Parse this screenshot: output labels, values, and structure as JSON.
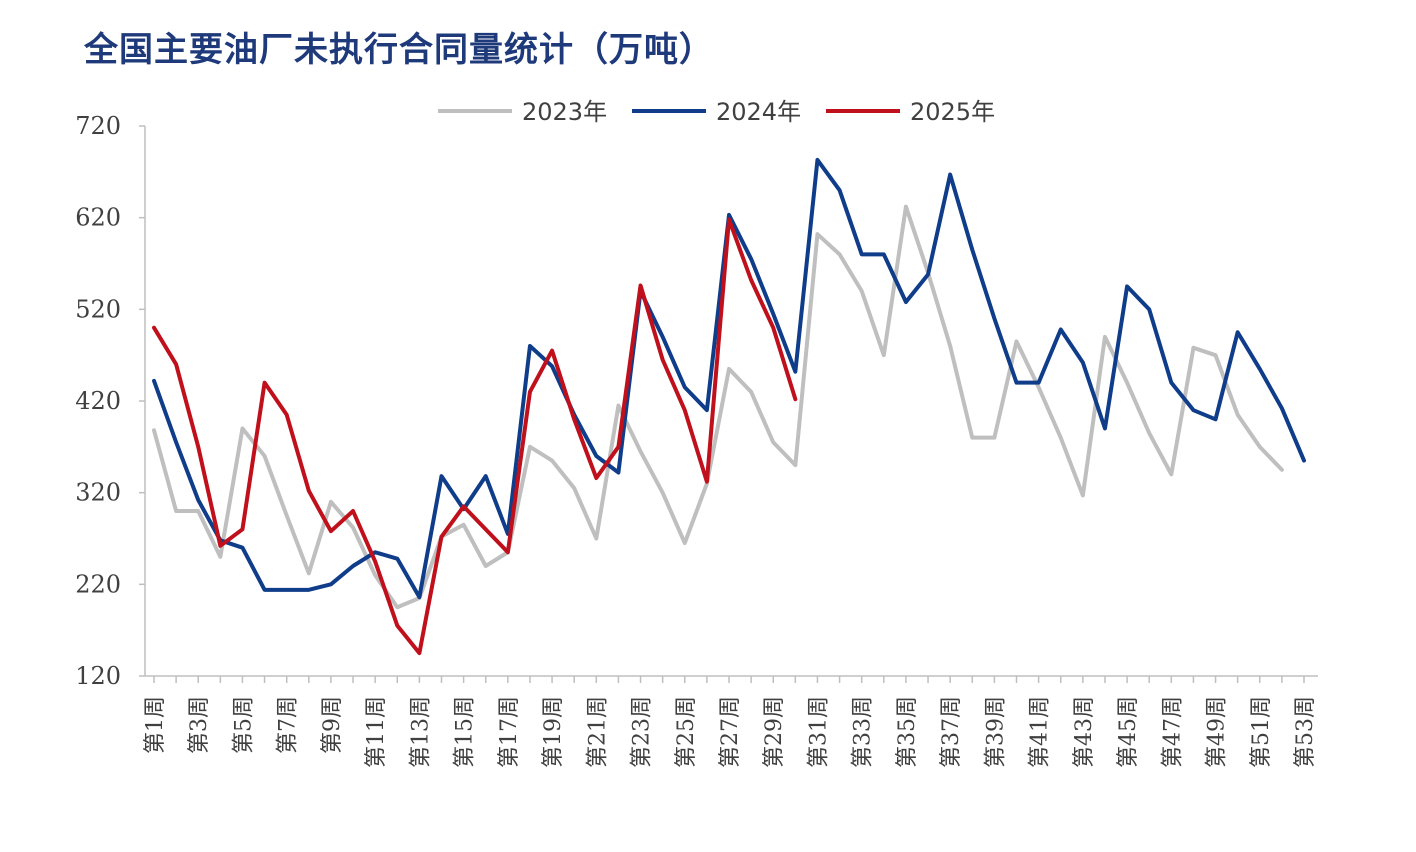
{
  "chart_data": {
    "type": "line",
    "title": "全国主要油厂未执行合同量统计（万吨）",
    "xlabel": "",
    "ylabel": "",
    "ylim": [
      120,
      720
    ],
    "yticks": [
      120,
      220,
      320,
      420,
      520,
      620,
      720
    ],
    "categories": [
      "第1周",
      "第2周",
      "第3周",
      "第4周",
      "第5周",
      "第6周",
      "第7周",
      "第8周",
      "第9周",
      "第10周",
      "第11周",
      "第12周",
      "第13周",
      "第14周",
      "第15周",
      "第16周",
      "第17周",
      "第18周",
      "第19周",
      "第20周",
      "第21周",
      "第22周",
      "第23周",
      "第24周",
      "第25周",
      "第26周",
      "第27周",
      "第28周",
      "第29周",
      "第30周",
      "第31周",
      "第32周",
      "第33周",
      "第34周",
      "第35周",
      "第36周",
      "第37周",
      "第38周",
      "第39周",
      "第40周",
      "第41周",
      "第42周",
      "第43周",
      "第44周",
      "第45周",
      "第46周",
      "第47周",
      "第48周",
      "第49周",
      "第50周",
      "第51周",
      "第52周",
      "第53周"
    ],
    "tick_labels": [
      "第1周",
      "第3周",
      "第5周",
      "第7周",
      "第9周",
      "第11周",
      "第13周",
      "第15周",
      "第17周",
      "第19周",
      "第21周",
      "第23周",
      "第25周",
      "第27周",
      "第29周",
      "第31周",
      "第33周",
      "第35周",
      "第37周",
      "第39周",
      "第41周",
      "第43周",
      "第45周",
      "第47周",
      "第49周",
      "第51周",
      "第53周"
    ],
    "legend_position": "top",
    "grid": false,
    "series": [
      {
        "name": "2023年",
        "color": "#bfbfbf",
        "values": [
          388,
          300,
          300,
          250,
          390,
          360,
          295,
          232,
          310,
          282,
          230,
          195,
          205,
          272,
          285,
          240,
          255,
          370,
          355,
          325,
          270,
          415,
          365,
          320,
          265,
          330,
          455,
          430,
          375,
          350,
          602,
          580,
          540,
          470,
          632,
          560,
          480,
          380,
          380,
          485,
          435,
          380,
          317,
          490,
          440,
          385,
          340,
          478,
          470,
          405,
          370,
          345,
          null
        ]
      },
      {
        "name": "2024年",
        "color": "#0f3d8a",
        "values": [
          442,
          375,
          312,
          268,
          260,
          214,
          214,
          214,
          220,
          240,
          255,
          248,
          206,
          338,
          302,
          338,
          275,
          480,
          458,
          405,
          360,
          342,
          540,
          490,
          435,
          410,
          623,
          575,
          515,
          452,
          683,
          650,
          580,
          580,
          528,
          558,
          667,
          585,
          510,
          440,
          440,
          498,
          462,
          390,
          545,
          520,
          440,
          410,
          400,
          495,
          455,
          412,
          355
        ]
      },
      {
        "name": "2025年",
        "color": "#c0101c",
        "values": [
          500,
          460,
          370,
          262,
          280,
          440,
          405,
          322,
          278,
          300,
          245,
          175,
          145,
          272,
          305,
          280,
          255,
          430,
          475,
          400,
          336,
          370,
          546,
          465,
          410,
          332,
          618,
          552,
          500,
          422,
          null,
          null,
          null,
          null,
          null,
          null,
          null,
          null,
          null,
          null,
          null,
          null,
          null,
          null,
          null,
          null,
          null,
          null,
          null,
          null,
          null,
          null,
          null
        ]
      }
    ]
  }
}
